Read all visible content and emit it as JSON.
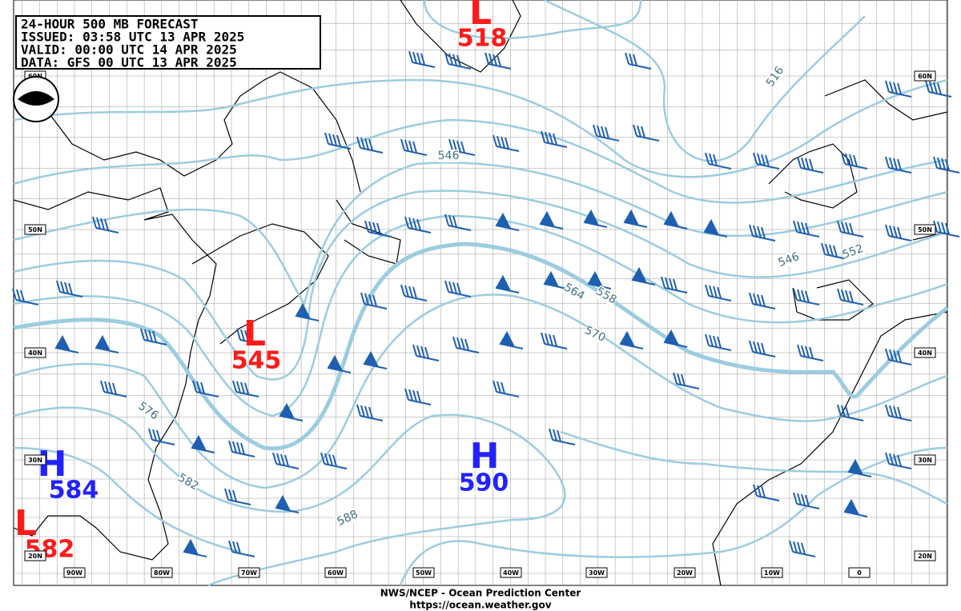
{
  "header": {
    "title": "24-HOUR 500 MB FORECAST",
    "issued": "ISSUED: 03:58 UTC 13 APR 2025",
    "valid": "VALID:  00:00 UTC 14 APR 2025",
    "data": "DATA:   GFS 00 UTC 13 APR 2025"
  },
  "latitude_labels": [
    "60N",
    "50N",
    "40N",
    "30N",
    "20N"
  ],
  "longitude_labels": [
    "90W",
    "80W",
    "70W",
    "60W",
    "50W",
    "40W",
    "30W",
    "20W",
    "10W",
    "0"
  ],
  "centers": [
    {
      "letter": "L",
      "value": "518"
    },
    {
      "letter": "L",
      "value": "545"
    },
    {
      "letter": "H",
      "value": "584"
    },
    {
      "letter": "H",
      "value": "590"
    },
    {
      "letter": "L",
      "value": "582"
    }
  ],
  "contour_labels": [
    "516",
    "546",
    "546",
    "552",
    "558",
    "564",
    "570",
    "576",
    "582",
    "588"
  ],
  "footer": {
    "agency": "NWS/NCEP - Ocean Prediction Center",
    "url": "https://ocean.weather.gov"
  }
}
